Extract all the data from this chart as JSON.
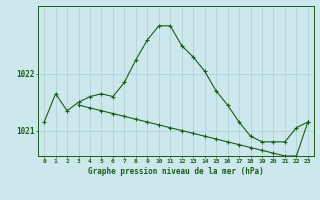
{
  "title": "Graphe pression niveau de la mer (hPa)",
  "background_color": "#cce8ec",
  "plot_bg_color": "#cce8ec",
  "line_color": "#1a5c1a",
  "grid_color": "#aacfd4",
  "xlim": [
    -0.5,
    23.5
  ],
  "ylim": [
    1020.55,
    1023.2
  ],
  "yticks": [
    1021,
    1022
  ],
  "xticks": [
    0,
    1,
    2,
    3,
    4,
    5,
    6,
    7,
    8,
    9,
    10,
    11,
    12,
    13,
    14,
    15,
    16,
    17,
    18,
    19,
    20,
    21,
    22,
    23
  ],
  "series1_x": [
    0,
    1,
    2,
    3,
    4,
    5,
    6,
    7,
    8,
    9,
    10,
    11,
    12,
    13,
    14,
    15,
    16,
    17,
    18,
    19,
    20,
    21,
    22,
    23
  ],
  "series1_y": [
    1021.15,
    1021.65,
    1021.35,
    1021.5,
    1021.6,
    1021.65,
    1021.6,
    1021.85,
    1022.25,
    1022.6,
    1022.85,
    1022.85,
    1022.5,
    1022.3,
    1022.05,
    1021.7,
    1021.45,
    1021.15,
    1020.9,
    1020.8,
    1020.8,
    1020.8,
    1021.05,
    1021.15
  ],
  "series2_x": [
    3,
    4,
    5,
    6,
    7,
    8,
    9,
    10,
    11,
    12,
    13,
    14,
    15,
    16,
    17,
    18,
    19,
    20,
    21,
    22,
    23
  ],
  "series2_y": [
    1021.45,
    1021.4,
    1021.35,
    1021.3,
    1021.25,
    1021.2,
    1021.15,
    1021.1,
    1021.05,
    1021.0,
    1020.95,
    1020.9,
    1020.85,
    1020.8,
    1020.75,
    1020.7,
    1020.65,
    1020.6,
    1020.55,
    1020.55,
    1021.15
  ]
}
